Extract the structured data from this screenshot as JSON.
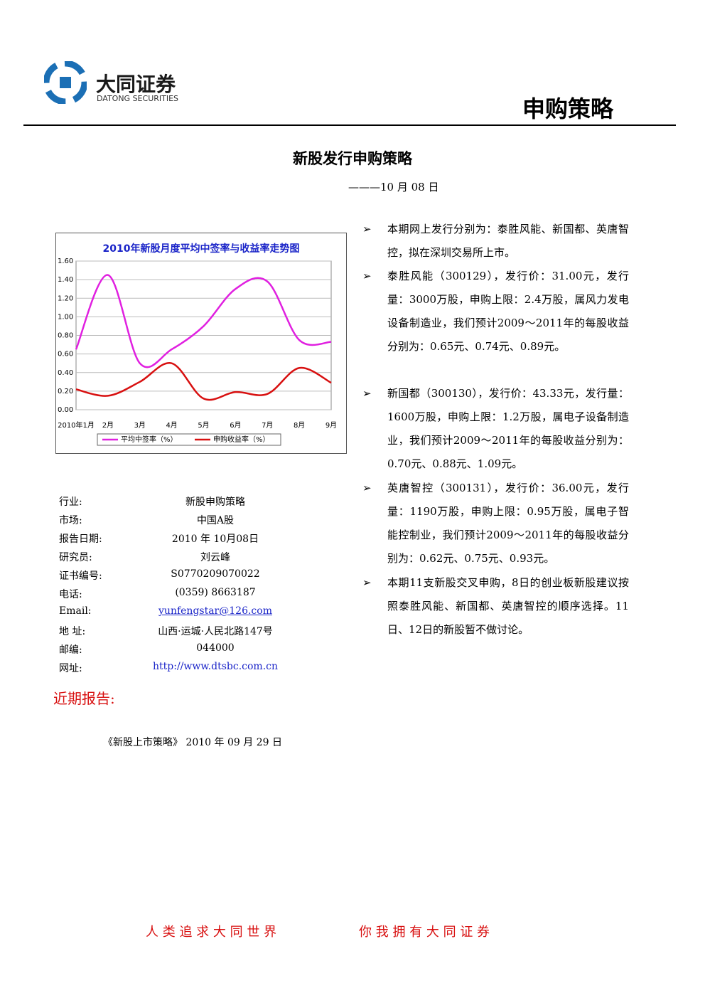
{
  "header": {
    "brand_cn": "大同证券",
    "brand_en": "DATONG SECURITIES",
    "section": "申购策略"
  },
  "title": "新股发行申购策略",
  "date": "———10 月 08 日",
  "chart_data": {
    "type": "line",
    "title": "2010年新股月度平均中签率与收益率走势图",
    "categories": [
      "2010年1月",
      "2月",
      "3月",
      "4月",
      "5月",
      "6月",
      "7月",
      "8月",
      "9月"
    ],
    "series": [
      {
        "name": "平均中签率（%）",
        "color": "#e020e0",
        "values": [
          0.65,
          1.45,
          0.5,
          0.65,
          0.9,
          1.3,
          1.38,
          0.75,
          0.73
        ]
      },
      {
        "name": "申购收益率（%）",
        "color": "#d81010",
        "values": [
          0.22,
          0.15,
          0.3,
          0.5,
          0.12,
          0.19,
          0.17,
          0.45,
          0.29
        ]
      }
    ],
    "ylim": [
      0,
      1.6
    ],
    "yticks": [
      {
        "value": 0,
        "label": "0.00"
      },
      {
        "value": 0.2,
        "label": "0.20"
      },
      {
        "value": 0.4,
        "label": "0.40"
      },
      {
        "value": 0.6,
        "label": "0.60"
      },
      {
        "value": 0.8,
        "label": "0.80"
      },
      {
        "value": 1,
        "label": "1.00"
      },
      {
        "value": 1.2,
        "label": "1.20"
      },
      {
        "value": 1.4,
        "label": "1.40"
      },
      {
        "value": 1.6,
        "label": "1.60"
      }
    ],
    "grid": true,
    "legend": "bottom"
  },
  "info": {
    "rows": [
      [
        "行业:",
        "新股申购策略"
      ],
      [
        "市场:",
        "中国A股"
      ],
      [
        "报告日期:",
        "2010 年 10月08日"
      ],
      [
        "研究员:",
        "刘云峰"
      ],
      [
        "证书编号:",
        "S0770209070022"
      ],
      [
        "电话:",
        "(0359) 8663187"
      ],
      [
        "Email:",
        "yunfengstar@126.com"
      ],
      [
        "地 址:",
        "山西·运城·人民北路147号"
      ],
      [
        "邮编:",
        "044000"
      ],
      [
        "网址:",
        "http://www.dtsbc.com.cn"
      ]
    ]
  },
  "bullets": [
    "本期网上发行分别为：泰胜风能、新国都、英唐智控，拟在深圳交易所上市。",
    "泰胜风能（300129），发行价：31.00元，发行量：3000万股，申购上限：2.4万股，属风力发电设备制造业，我们预计2009～2011年的每股收益分别为：0.65元、0.74元、0.89元。",
    "新国都（300130），发行价：43.33元，发行量：1600万股，申购上限：1.2万股，属电子设备制造业，我们预计2009～2011年的每股收益分别为：0.70元、0.88元、1.09元。",
    "英唐智控（300131），发行价：36.00元，发行量：1190万股，申购上限：0.95万股，属电子智能控制业，我们预计2009～2011年的每股收益分别为：0.62元、0.75元、0.93元。",
    "本期11支新股交叉申购，8日的创业板新股建议按照泰胜风能、新国都、英唐智控的顺序选择。11日、12日的新股暂不做讨论。"
  ],
  "recent_reports": {
    "heading": "近期报告:",
    "items": [
      "《新股上市策略》 2010 年 09 月 29 日"
    ]
  },
  "footer": [
    "人 类 追 求 大 同 世 界",
    "你 我 拥 有 大 同 证 券"
  ]
}
